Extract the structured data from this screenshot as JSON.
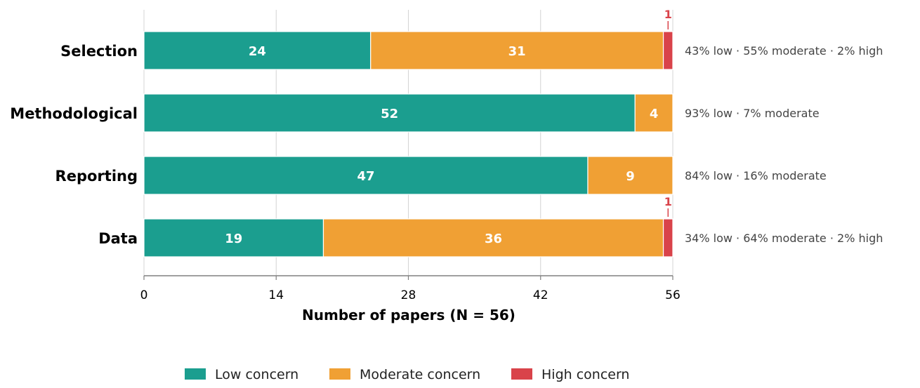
{
  "chart_data": {
    "type": "bar",
    "orientation": "horizontal",
    "stacked": true,
    "categories": [
      "Selection",
      "Methodological",
      "Reporting",
      "Data"
    ],
    "series": [
      {
        "name": "Low concern",
        "color": "#1b9e8f",
        "values": [
          24,
          52,
          47,
          19
        ]
      },
      {
        "name": "Moderate concern",
        "color": "#f0a034",
        "values": [
          31,
          4,
          9,
          36
        ]
      },
      {
        "name": "High concern",
        "color": "#d9434a",
        "values": [
          1,
          0,
          0,
          1
        ]
      }
    ],
    "bar_labels": [
      [
        "24",
        "31",
        ""
      ],
      [
        "52",
        "4",
        ""
      ],
      [
        "47",
        "9",
        ""
      ],
      [
        "19",
        "36",
        ""
      ]
    ],
    "high_annotations": [
      "1",
      "",
      "",
      "1"
    ],
    "percent_summaries": [
      [
        "43% low",
        "55% moderate",
        "2% high"
      ],
      [
        "93% low",
        "7% moderate"
      ],
      [
        "84% low",
        "16% moderate"
      ],
      [
        "34% low",
        "64% moderate",
        "2% high"
      ]
    ],
    "separator": "·",
    "xlabel": "Number of papers  (N = 56)",
    "xlim": [
      0,
      56
    ],
    "xticks": [
      "0",
      "14",
      "28",
      "42",
      "56"
    ],
    "grid": "vertical",
    "legend_position": "bottom-center"
  }
}
